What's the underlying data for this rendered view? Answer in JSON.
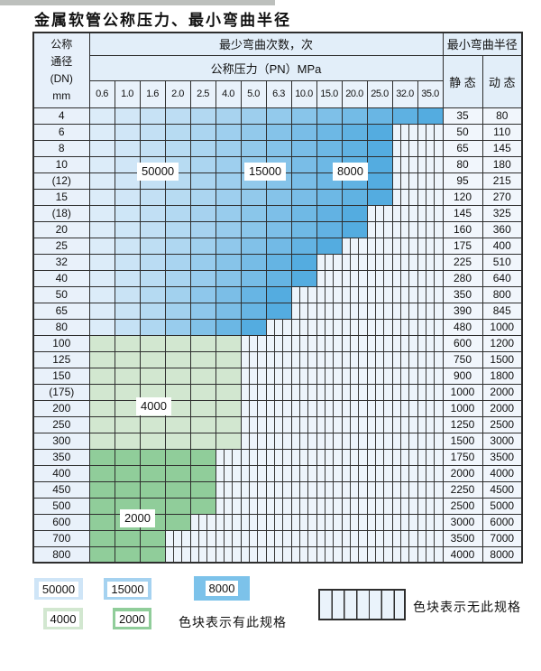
{
  "title": "金属软管公称压力、最小弯曲半径",
  "table": {
    "dn_header_lines": [
      "公称",
      "通径",
      "(DN)",
      "mm"
    ],
    "cycles_header": "最少弯曲次数，次",
    "pressure_header": "公称压力（PN）MPa",
    "radius_header": "最小弯曲半径",
    "static_header": "静 态",
    "dynamic_header": "动 态",
    "pressure_columns": [
      "0.6",
      "1.0",
      "1.6",
      "2.0",
      "2.5",
      "4.0",
      "5.0",
      "6.3",
      "10.0",
      "15.0",
      "20.0",
      "25.0",
      "32.0",
      "35.0"
    ],
    "rows": [
      {
        "dn": "4",
        "colored_columns": 14,
        "region": "blue",
        "static": "35",
        "dynamic": "80"
      },
      {
        "dn": "6",
        "colored_columns": 12,
        "region": "blue",
        "static": "50",
        "dynamic": "110"
      },
      {
        "dn": "8",
        "colored_columns": 12,
        "region": "blue",
        "static": "65",
        "dynamic": "145"
      },
      {
        "dn": "10",
        "colored_columns": 12,
        "region": "blue",
        "static": "80",
        "dynamic": "180"
      },
      {
        "dn": "(12)",
        "colored_columns": 12,
        "region": "blue",
        "static": "95",
        "dynamic": "215"
      },
      {
        "dn": "15",
        "colored_columns": 12,
        "region": "blue",
        "static": "120",
        "dynamic": "270"
      },
      {
        "dn": "(18)",
        "colored_columns": 11,
        "region": "blue",
        "static": "145",
        "dynamic": "325"
      },
      {
        "dn": "20",
        "colored_columns": 11,
        "region": "blue",
        "static": "160",
        "dynamic": "360"
      },
      {
        "dn": "25",
        "colored_columns": 10,
        "region": "blue",
        "static": "175",
        "dynamic": "400"
      },
      {
        "dn": "32",
        "colored_columns": 9,
        "region": "blue",
        "static": "225",
        "dynamic": "510"
      },
      {
        "dn": "40",
        "colored_columns": 9,
        "region": "blue",
        "static": "280",
        "dynamic": "640"
      },
      {
        "dn": "50",
        "colored_columns": 8,
        "region": "blue",
        "static": "350",
        "dynamic": "800"
      },
      {
        "dn": "65",
        "colored_columns": 8,
        "region": "blue",
        "static": "390",
        "dynamic": "845"
      },
      {
        "dn": "80",
        "colored_columns": 7,
        "region": "blue",
        "static": "480",
        "dynamic": "1000"
      },
      {
        "dn": "100",
        "colored_columns": 6,
        "region": "green-4000",
        "static": "600",
        "dynamic": "1200"
      },
      {
        "dn": "125",
        "colored_columns": 6,
        "region": "green-4000",
        "static": "750",
        "dynamic": "1500"
      },
      {
        "dn": "150",
        "colored_columns": 6,
        "region": "green-4000",
        "static": "900",
        "dynamic": "1800"
      },
      {
        "dn": "(175)",
        "colored_columns": 6,
        "region": "green-4000",
        "static": "1000",
        "dynamic": "2000"
      },
      {
        "dn": "200",
        "colored_columns": 6,
        "region": "green-4000",
        "static": "1000",
        "dynamic": "2000"
      },
      {
        "dn": "250",
        "colored_columns": 6,
        "region": "green-4000",
        "static": "1250",
        "dynamic": "2500"
      },
      {
        "dn": "300",
        "colored_columns": 6,
        "region": "green-4000",
        "static": "1500",
        "dynamic": "3000"
      },
      {
        "dn": "350",
        "colored_columns": 5,
        "region": "green-2000",
        "static": "1750",
        "dynamic": "3500"
      },
      {
        "dn": "400",
        "colored_columns": 5,
        "region": "green-2000",
        "static": "2000",
        "dynamic": "4000"
      },
      {
        "dn": "450",
        "colored_columns": 5,
        "region": "green-2000",
        "static": "2250",
        "dynamic": "4500"
      },
      {
        "dn": "500",
        "colored_columns": 5,
        "region": "green-2000",
        "static": "2500",
        "dynamic": "5000"
      },
      {
        "dn": "600",
        "colored_columns": 4,
        "region": "green-2000",
        "static": "3000",
        "dynamic": "6000"
      },
      {
        "dn": "700",
        "colored_columns": 3,
        "region": "green-2000",
        "static": "3500",
        "dynamic": "7000"
      },
      {
        "dn": "800",
        "colored_columns": 3,
        "region": "green-2000",
        "static": "4000",
        "dynamic": "8000"
      }
    ]
  },
  "overlay_labels": [
    {
      "text": "50000"
    },
    {
      "text": "15000"
    },
    {
      "text": "8000"
    },
    {
      "text": "4000"
    },
    {
      "text": "2000"
    }
  ],
  "legend": {
    "items": [
      {
        "label": "50000",
        "color": "#cfe5f7"
      },
      {
        "label": "15000",
        "color": "#a5d2f0"
      },
      {
        "label": "8000",
        "color": "#7cc2ea"
      },
      {
        "label": "4000",
        "color": "#d2e7d0"
      },
      {
        "label": "2000",
        "color": "#90cd9a"
      }
    ],
    "has_spec_text": "色块表示有此规格",
    "no_spec_text": "色块表示无此规格"
  },
  "colors": {
    "blue_light": "#dcecf9",
    "blue_dark": "#54ace0",
    "green_4000": "#d2e7d0",
    "green_2000": "#90cd9a",
    "stripe_bg": "#edf4fb",
    "grid": "#2e2e2e"
  }
}
